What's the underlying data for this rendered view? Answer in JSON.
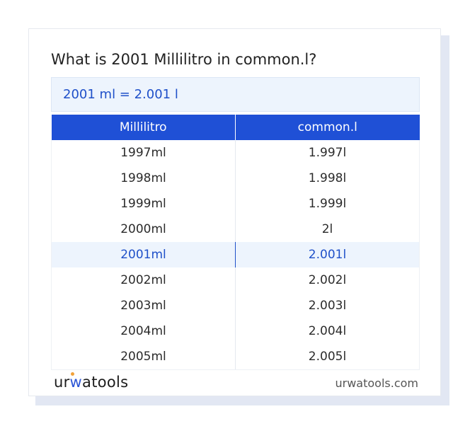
{
  "title": "What is 2001 Millilitro in common.l?",
  "result": "2001 ml = 2.001 l",
  "table": {
    "headers": [
      "Millilitro",
      "common.l"
    ],
    "rows": [
      [
        "1997ml",
        "1.997l"
      ],
      [
        "1998ml",
        "1.998l"
      ],
      [
        "1999ml",
        "1.999l"
      ],
      [
        "2000ml",
        "2l"
      ],
      [
        "2001ml",
        "2.001l"
      ],
      [
        "2002ml",
        "2.002l"
      ],
      [
        "2003ml",
        "2.003l"
      ],
      [
        "2004ml",
        "2.004l"
      ],
      [
        "2005ml",
        "2.005l"
      ]
    ],
    "highlighted_row": 4
  },
  "footer": {
    "logo": {
      "part1": "ur",
      "part2": "w",
      "part3": "atools"
    },
    "site": "urwatools.com"
  },
  "colors": {
    "accent": "#1f50d6",
    "highlight_bg": "#edf4fd",
    "highlight_text": "#1f50c9",
    "logo_dot": "#f2a23a"
  }
}
